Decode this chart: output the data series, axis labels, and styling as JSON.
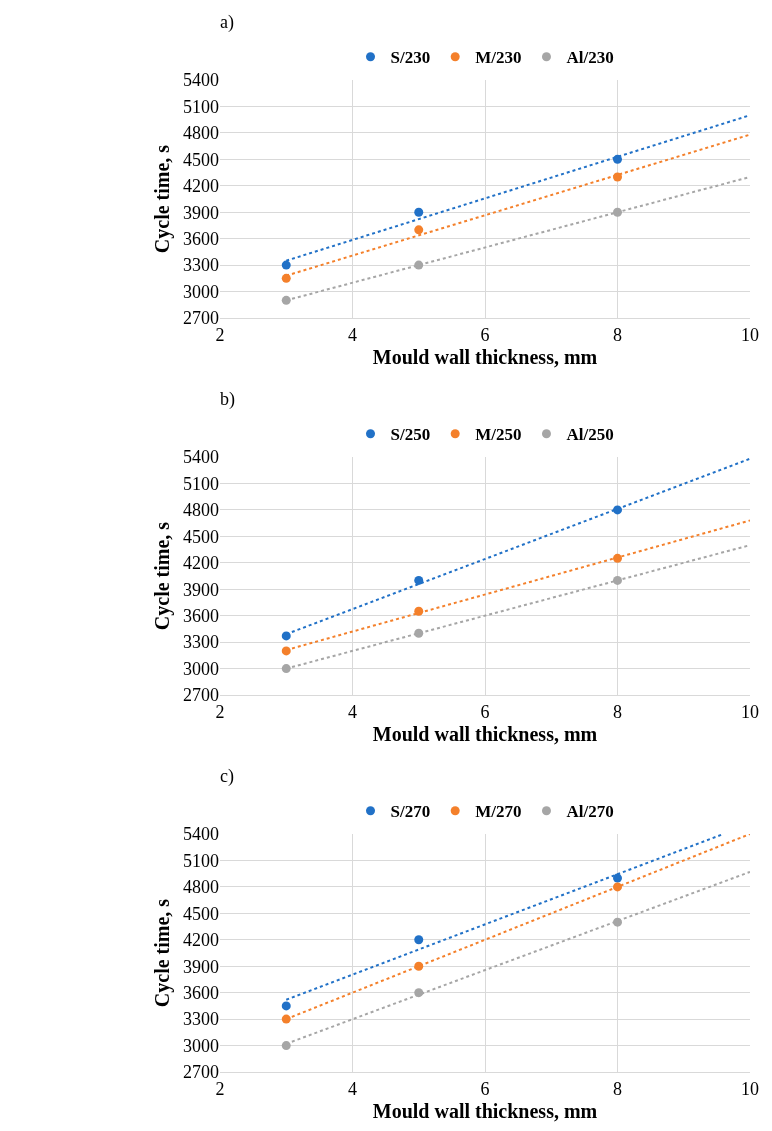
{
  "chart_data": [
    {
      "type": "scatter",
      "title": "a)",
      "xlabel": "Mould wall thickness, mm",
      "ylabel": "Cycle time, s",
      "x": [
        3,
        5,
        8
      ],
      "xlim": [
        2,
        10
      ],
      "xticks": [
        2,
        4,
        6,
        8,
        10
      ],
      "ylim": [
        2700,
        5400
      ],
      "yticks": [
        2700,
        3000,
        3300,
        3600,
        3900,
        4200,
        4500,
        4800,
        5100,
        5400
      ],
      "grid": true,
      "legend": "top",
      "marker": "circle",
      "series": [
        {
          "name": "S/230",
          "color": "#2171c7",
          "values": [
            3300,
            3900,
            4500
          ]
        },
        {
          "name": "M/230",
          "color": "#f4802b",
          "values": [
            3150,
            3700,
            4300
          ]
        },
        {
          "name": "Al/230",
          "color": "#a6a6a6",
          "values": [
            2900,
            3300,
            3900
          ]
        },
        {
          "type": "line",
          "line_style": "dotted",
          "marker": "none",
          "color": "#2171c7",
          "x": [
            3,
            10
          ],
          "values": [
            3350,
            5000
          ]
        },
        {
          "type": "line",
          "line_style": "dotted",
          "marker": "none",
          "color": "#f4802b",
          "x": [
            3,
            10
          ],
          "values": [
            3180,
            4780
          ]
        },
        {
          "type": "line",
          "line_style": "dotted",
          "marker": "none",
          "color": "#a6a6a6",
          "x": [
            3,
            10
          ],
          "values": [
            2900,
            4300
          ]
        }
      ]
    },
    {
      "type": "scatter",
      "title": "b)",
      "xlabel": "Mould wall thickness, mm",
      "ylabel": "Cycle time, s",
      "x": [
        3,
        5,
        8
      ],
      "xlim": [
        2,
        10
      ],
      "xticks": [
        2,
        4,
        6,
        8,
        10
      ],
      "ylim": [
        2700,
        5400
      ],
      "yticks": [
        2700,
        3000,
        3300,
        3600,
        3900,
        4200,
        4500,
        4800,
        5100,
        5400
      ],
      "grid": true,
      "legend": "top",
      "marker": "circle",
      "series": [
        {
          "name": "S/250",
          "color": "#2171c7",
          "values": [
            3370,
            4000,
            4800
          ]
        },
        {
          "name": "M/250",
          "color": "#f4802b",
          "values": [
            3200,
            3650,
            4250
          ]
        },
        {
          "name": "Al/250",
          "color": "#a6a6a6",
          "values": [
            3000,
            3400,
            4000
          ]
        },
        {
          "type": "line",
          "line_style": "dotted",
          "marker": "none",
          "color": "#2171c7",
          "x": [
            3,
            10
          ],
          "values": [
            3390,
            5380
          ]
        },
        {
          "type": "line",
          "line_style": "dotted",
          "marker": "none",
          "color": "#f4802b",
          "x": [
            3,
            10
          ],
          "values": [
            3210,
            4680
          ]
        },
        {
          "type": "line",
          "line_style": "dotted",
          "marker": "none",
          "color": "#a6a6a6",
          "x": [
            3,
            10
          ],
          "values": [
            3000,
            4400
          ]
        }
      ]
    },
    {
      "type": "scatter",
      "title": "c)",
      "xlabel": "Mould wall thickness, mm",
      "ylabel": "Cycle time, s",
      "x": [
        3,
        5,
        8
      ],
      "xlim": [
        2,
        10
      ],
      "xticks": [
        2,
        4,
        6,
        8,
        10
      ],
      "ylim": [
        2700,
        5400
      ],
      "yticks": [
        2700,
        3000,
        3300,
        3600,
        3900,
        4200,
        4500,
        4800,
        5100,
        5400
      ],
      "grid": true,
      "legend": "top",
      "marker": "circle",
      "series": [
        {
          "name": "S/270",
          "color": "#2171c7",
          "values": [
            3450,
            4200,
            4900
          ]
        },
        {
          "name": "M/270",
          "color": "#f4802b",
          "values": [
            3300,
            3900,
            4800
          ]
        },
        {
          "name": "Al/270",
          "color": "#a6a6a6",
          "values": [
            3000,
            3600,
            4400
          ]
        },
        {
          "type": "line",
          "line_style": "dotted",
          "marker": "none",
          "color": "#2171c7",
          "x": [
            3,
            9.6
          ],
          "values": [
            3520,
            5400
          ]
        },
        {
          "type": "line",
          "line_style": "dotted",
          "marker": "none",
          "color": "#f4802b",
          "x": [
            3,
            10
          ],
          "values": [
            3300,
            5400
          ]
        },
        {
          "type": "line",
          "line_style": "dotted",
          "marker": "none",
          "color": "#a6a6a6",
          "x": [
            3,
            10
          ],
          "values": [
            3020,
            4970
          ]
        }
      ]
    }
  ]
}
